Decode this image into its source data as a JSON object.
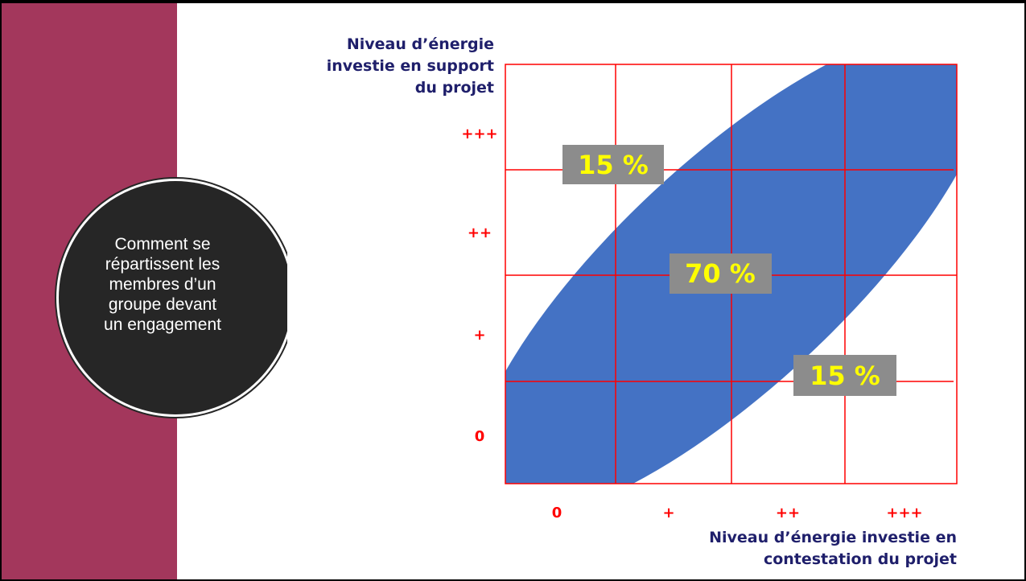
{
  "sidebar": {
    "color": "#a3375c",
    "caption_lines": [
      "Comment se",
      "répartissent les",
      "membres d’un",
      "groupe devant",
      "un engagement"
    ]
  },
  "diagram": {
    "y_title_lines": [
      "Niveau d’énergie",
      "investie en support",
      "du projet"
    ],
    "x_title_lines": [
      "Niveau d’énergie investie en",
      "contestation du projet"
    ],
    "y_ticks": [
      "+++",
      "++",
      "+",
      "0"
    ],
    "x_ticks": [
      "0",
      "+",
      "++",
      "+++"
    ],
    "segments": [
      {
        "label": "15 %"
      },
      {
        "label": "70 %"
      },
      {
        "label": "15 %"
      }
    ],
    "colors": {
      "band": "#4472c4",
      "grid": "#ff0000",
      "tick": "#ff0000",
      "title": "#1f1f6b",
      "label_box": "#8c8c8c",
      "label_text": "#ffff00"
    }
  }
}
